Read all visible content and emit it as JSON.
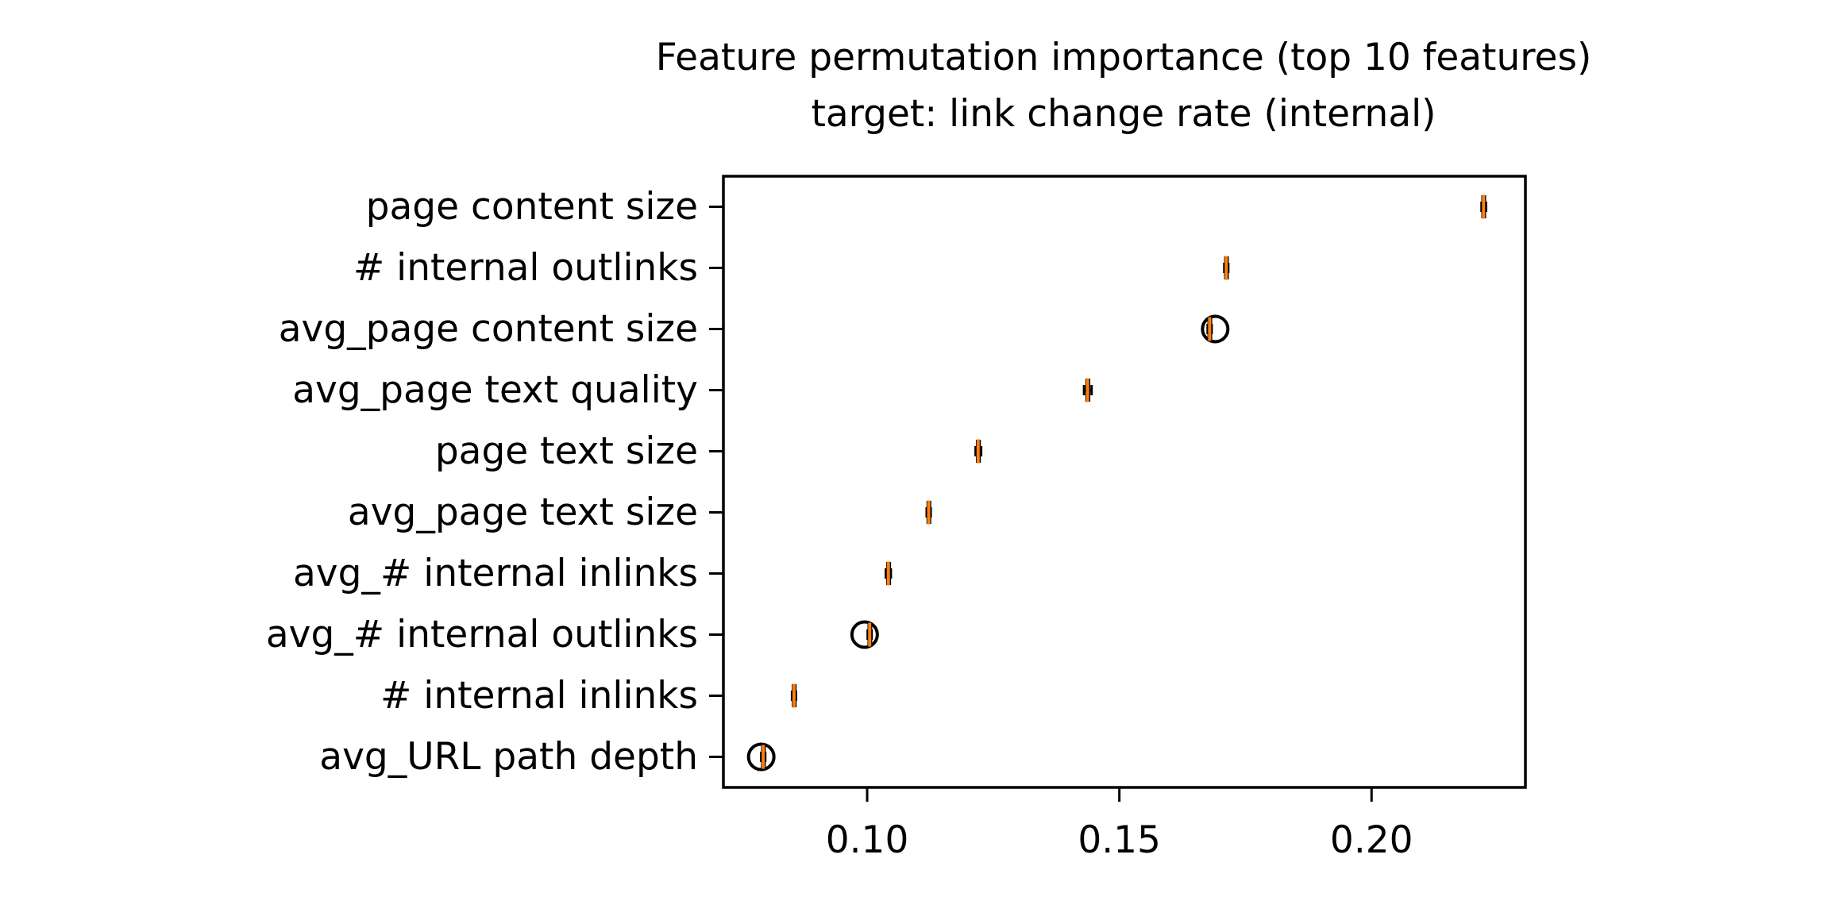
{
  "chart_data": {
    "type": "boxplot-horizontal",
    "title_line1": "Feature permutation importance (top 10 features)",
    "title_line2": "target: link change rate (internal)",
    "xlabel": "",
    "ylabel": "",
    "xlim": [
      0.0715,
      0.2305
    ],
    "xticks": [
      {
        "value": 0.1,
        "label": "0.10"
      },
      {
        "value": 0.15,
        "label": "0.15"
      },
      {
        "value": 0.2,
        "label": "0.20"
      }
    ],
    "grid": false,
    "features": [
      {
        "label": "page content size",
        "q1": 0.222,
        "median": 0.2222,
        "q3": 0.2224,
        "whisker_low": 0.2218,
        "whisker_high": 0.2227,
        "outliers": []
      },
      {
        "label": "# internal outlinks",
        "q1": 0.171,
        "median": 0.1712,
        "q3": 0.1714,
        "whisker_low": 0.1708,
        "whisker_high": 0.1716,
        "outliers": []
      },
      {
        "label": "avg_page content size",
        "q1": 0.1677,
        "median": 0.1679,
        "q3": 0.1681,
        "whisker_low": 0.1675,
        "whisker_high": 0.1683,
        "outliers": [
          0.169
        ]
      },
      {
        "label": "avg_page text quality",
        "q1": 0.1435,
        "median": 0.1437,
        "q3": 0.144,
        "whisker_low": 0.143,
        "whisker_high": 0.1445,
        "outliers": []
      },
      {
        "label": "page text size",
        "q1": 0.1218,
        "median": 0.122,
        "q3": 0.1223,
        "whisker_low": 0.1215,
        "whisker_high": 0.1226,
        "outliers": []
      },
      {
        "label": "avg_page text size",
        "q1": 0.112,
        "median": 0.1122,
        "q3": 0.1124,
        "whisker_low": 0.1118,
        "whisker_high": 0.1126,
        "outliers": []
      },
      {
        "label": "avg_# internal inlinks",
        "q1": 0.104,
        "median": 0.1042,
        "q3": 0.1045,
        "whisker_low": 0.1037,
        "whisker_high": 0.1047,
        "outliers": []
      },
      {
        "label": "avg_# internal outlinks",
        "q1": 0.1003,
        "median": 0.1005,
        "q3": 0.1007,
        "whisker_low": 0.1001,
        "whisker_high": 0.1009,
        "outliers": [
          0.0995
        ]
      },
      {
        "label": "# internal inlinks",
        "q1": 0.0853,
        "median": 0.0855,
        "q3": 0.0857,
        "whisker_low": 0.0851,
        "whisker_high": 0.0859,
        "outliers": []
      },
      {
        "label": "avg_URL path depth",
        "q1": 0.0792,
        "median": 0.0794,
        "q3": 0.0796,
        "whisker_low": 0.079,
        "whisker_high": 0.0798,
        "outliers": [
          0.079
        ]
      }
    ],
    "colors": {
      "box": "#000000",
      "median": "#ff7f0e",
      "outlier": "#000000",
      "axes": "#000000"
    }
  }
}
